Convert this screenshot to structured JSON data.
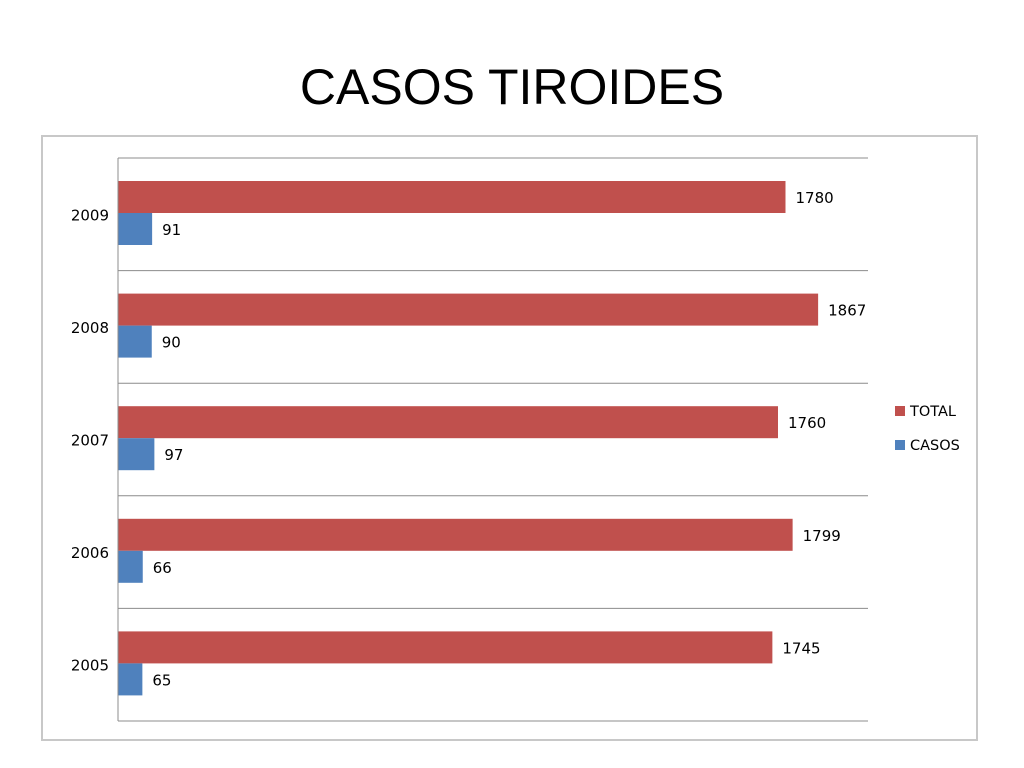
{
  "title": "CASOS TIROIDES",
  "chart_data": {
    "type": "bar",
    "orientation": "horizontal",
    "categories": [
      "2005",
      "2006",
      "2007",
      "2008",
      "2009"
    ],
    "series": [
      {
        "name": "TOTAL",
        "color": "#c0504d",
        "values": [
          1745,
          1799,
          1760,
          1867,
          1780
        ]
      },
      {
        "name": "CASOS",
        "color": "#4f81bd",
        "values": [
          65,
          66,
          97,
          90,
          91
        ]
      }
    ],
    "xlim": [
      0,
      2000
    ],
    "grid": true,
    "legend_position": "right",
    "data_labels": true
  }
}
